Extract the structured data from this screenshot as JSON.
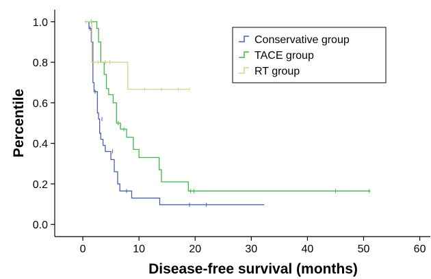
{
  "chart_data": {
    "type": "line",
    "title": "",
    "xlabel": "Disease-free survival (months)",
    "ylabel": "Percentile",
    "xlim": [
      -5,
      62
    ],
    "ylim": [
      -0.06,
      1.06
    ],
    "x_ticks": [
      0,
      10,
      20,
      30,
      40,
      50,
      60
    ],
    "y_ticks": [
      0.0,
      0.2,
      0.4,
      0.6,
      0.8,
      1.0
    ],
    "x_tick_labels": [
      "0",
      "10",
      "20",
      "30",
      "40",
      "50",
      "60"
    ],
    "y_tick_labels": [
      "0.0",
      "0.2",
      "0.4",
      "0.6",
      "0.8",
      "1.0"
    ],
    "grid": false,
    "legend_position": "top-right",
    "series": [
      {
        "name": "Conservative group",
        "color": "#4a5fab",
        "steps": [
          [
            0.3,
            1.0
          ],
          [
            1.1,
            0.967
          ],
          [
            1.5,
            0.9
          ],
          [
            1.8,
            0.7
          ],
          [
            2.0,
            0.655
          ],
          [
            2.6,
            0.55
          ],
          [
            2.8,
            0.52
          ],
          [
            3.0,
            0.45
          ],
          [
            3.2,
            0.42
          ],
          [
            3.6,
            0.39
          ],
          [
            4.0,
            0.36
          ],
          [
            5.0,
            0.32
          ],
          [
            5.6,
            0.26
          ],
          [
            6.2,
            0.2
          ],
          [
            6.6,
            0.165
          ],
          [
            8.7,
            0.13
          ],
          [
            13.7,
            0.097
          ],
          [
            32.3,
            0.097
          ]
        ],
        "censored": [
          [
            1.3,
            0.967
          ],
          [
            2.2,
            0.655
          ],
          [
            3.4,
            0.52
          ],
          [
            5.3,
            0.36
          ],
          [
            7.8,
            0.165
          ],
          [
            19.0,
            0.097
          ],
          [
            22.0,
            0.097
          ]
        ]
      },
      {
        "name": "TACE group",
        "color": "#3fb54a",
        "steps": [
          [
            0.3,
            1.0
          ],
          [
            2.5,
            0.967
          ],
          [
            2.8,
            0.9
          ],
          [
            3.2,
            0.8
          ],
          [
            3.8,
            0.74
          ],
          [
            4.2,
            0.67
          ],
          [
            4.6,
            0.64
          ],
          [
            5.4,
            0.6
          ],
          [
            6.0,
            0.5
          ],
          [
            6.7,
            0.47
          ],
          [
            7.8,
            0.43
          ],
          [
            9.0,
            0.37
          ],
          [
            10.0,
            0.33
          ],
          [
            13.6,
            0.27
          ],
          [
            14.0,
            0.21
          ],
          [
            18.8,
            0.165
          ],
          [
            51.2,
            0.165
          ]
        ],
        "censored": [
          [
            1.5,
            1.0
          ],
          [
            4.0,
            0.8
          ],
          [
            6.3,
            0.5
          ],
          [
            7.3,
            0.47
          ],
          [
            19.2,
            0.165
          ],
          [
            19.8,
            0.165
          ],
          [
            45.0,
            0.165
          ],
          [
            51.0,
            0.165
          ]
        ]
      },
      {
        "name": "RT group",
        "color": "#d6d48a",
        "steps": [
          [
            0.3,
            1.0
          ],
          [
            1.6,
            0.8
          ],
          [
            8.0,
            0.667
          ],
          [
            19.0,
            0.667
          ]
        ],
        "censored": [
          [
            0.6,
            1.0
          ],
          [
            2.7,
            0.8
          ],
          [
            4.0,
            0.8
          ],
          [
            4.8,
            0.8
          ],
          [
            11.0,
            0.667
          ],
          [
            14.0,
            0.667
          ],
          [
            17.0,
            0.667
          ],
          [
            19.0,
            0.667
          ]
        ]
      }
    ]
  }
}
